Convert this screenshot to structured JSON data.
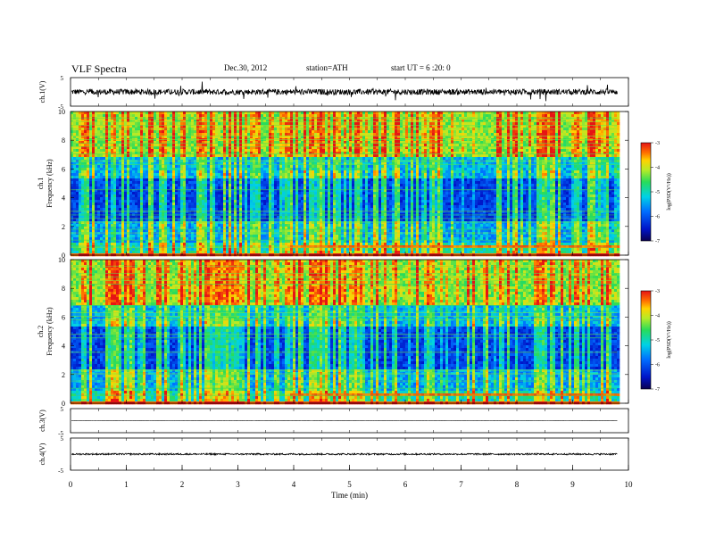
{
  "header": {
    "title": "VLF  Spectra",
    "date": "Dec.30, 2012",
    "station": "station=ATH",
    "start": "start  UT  =   6  :20: 0"
  },
  "chart_data": [
    {
      "type": "line",
      "panel": "ch1-waveform",
      "ylabel": "ch.1(V)",
      "ylim": [
        -5,
        5
      ],
      "yticks": [
        "5",
        "-5"
      ],
      "baseline_v": 0.0,
      "noise_amplitude_v": 2.0,
      "color": "#000000"
    },
    {
      "type": "heatmap",
      "panel": "ch1-spectrogram",
      "ylabel_channel": "ch.1",
      "ylabel": "Frequency  (kHz)",
      "ylim": [
        0,
        10
      ],
      "yticks": [
        "0",
        "2",
        "4",
        "6",
        "8",
        "10"
      ],
      "colorbar": {
        "label": "log(PSD(V²/Hz))",
        "range": [
          -7,
          -3
        ],
        "ticks": [
          "-3",
          "-4",
          "-5",
          "-6",
          "-7"
        ]
      },
      "description_features": {
        "bright_band_khz": [
          0.5,
          0.7
        ],
        "bright_band_time_min": [
          3.9,
          9.8
        ],
        "red_line_time_min": 5.45
      }
    },
    {
      "type": "heatmap",
      "panel": "ch2-spectrogram",
      "ylabel_channel": "ch.2",
      "ylabel": "Frequency  (kHz)",
      "ylim": [
        0,
        10
      ],
      "yticks": [
        "0",
        "2",
        "4",
        "6",
        "8",
        "10"
      ],
      "colorbar": {
        "label": "log(PSD(V²/Hz))",
        "range": [
          -7,
          -3
        ],
        "ticks": [
          "-3",
          "-4",
          "-5",
          "-6",
          "-7"
        ]
      },
      "description_features": {
        "bright_band_khz": [
          0.5,
          0.8
        ],
        "bright_band_time_min": [
          3.9,
          9.8
        ],
        "red_line_time_min": 5.45
      }
    },
    {
      "type": "line",
      "panel": "ch3-waveform",
      "ylabel": "ch.3(V)",
      "ylim": [
        -5,
        5
      ],
      "yticks": [
        "5",
        "-5"
      ],
      "baseline_v": 0.0,
      "noise_amplitude_v": 0.1,
      "color": "#000000"
    },
    {
      "type": "line",
      "panel": "ch4-waveform",
      "ylabel": "ch.4(V)",
      "ylim": [
        -5,
        5
      ],
      "yticks": [
        "5",
        "-5"
      ],
      "baseline_v": 0.0,
      "noise_amplitude_v": 0.5,
      "color": "#000000"
    }
  ],
  "x_axis": {
    "label": "Time  (min)",
    "range": [
      0,
      10
    ],
    "ticks": [
      "0",
      "1",
      "2",
      "3",
      "4",
      "5",
      "6",
      "7",
      "8",
      "9",
      "10"
    ],
    "data_end_min": 9.8
  },
  "colors": {
    "frame": "#000000",
    "background": "#ffffff"
  }
}
